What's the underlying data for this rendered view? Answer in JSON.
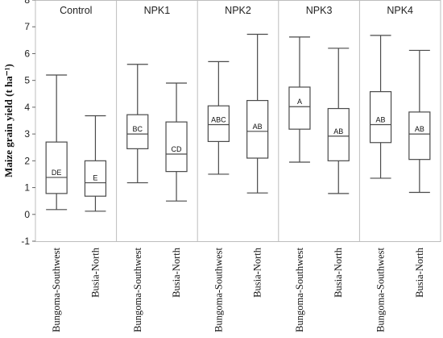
{
  "chart_data": {
    "type": "boxplot",
    "ylabel": "Maize grain yield (t ha⁻¹)",
    "ylim": [
      -1,
      8
    ],
    "yticks": [
      -1,
      0,
      1,
      2,
      3,
      4,
      5,
      6,
      7,
      8
    ],
    "panels": [
      {
        "title": "Control",
        "boxes": [
          {
            "category": "Bungoma-Southwest",
            "min": 0.18,
            "q1": 0.78,
            "median": 1.38,
            "q3": 2.7,
            "max": 5.2,
            "label": "DE"
          },
          {
            "category": "Busia-North",
            "min": 0.12,
            "q1": 0.68,
            "median": 1.18,
            "q3": 2.0,
            "max": 3.68,
            "label": "E"
          }
        ]
      },
      {
        "title": "NPK1",
        "boxes": [
          {
            "category": "Bungoma-Southwest",
            "min": 1.18,
            "q1": 2.45,
            "median": 3.0,
            "q3": 3.72,
            "max": 5.6,
            "label": "BC"
          },
          {
            "category": "Busia-North",
            "min": 0.5,
            "q1": 1.6,
            "median": 2.25,
            "q3": 3.45,
            "max": 4.9,
            "label": "CD"
          }
        ]
      },
      {
        "title": "NPK2",
        "boxes": [
          {
            "category": "Bungoma-Southwest",
            "min": 1.5,
            "q1": 2.72,
            "median": 3.35,
            "q3": 4.05,
            "max": 5.7,
            "label": "ABC"
          },
          {
            "category": "Busia-North",
            "min": 0.8,
            "q1": 2.1,
            "median": 3.1,
            "q3": 4.25,
            "max": 6.72,
            "label": "AB"
          }
        ]
      },
      {
        "title": "NPK3",
        "boxes": [
          {
            "category": "Bungoma-Southwest",
            "min": 1.95,
            "q1": 3.18,
            "median": 4.02,
            "q3": 4.75,
            "max": 6.62,
            "label": "A"
          },
          {
            "category": "Busia-North",
            "min": 0.78,
            "q1": 2.0,
            "median": 2.92,
            "q3": 3.95,
            "max": 6.2,
            "label": "AB"
          }
        ]
      },
      {
        "title": "NPK4",
        "boxes": [
          {
            "category": "Bungoma-Southwest",
            "min": 1.35,
            "q1": 2.68,
            "median": 3.35,
            "q3": 4.58,
            "max": 6.68,
            "label": "AB"
          },
          {
            "category": "Busia-North",
            "min": 0.82,
            "q1": 2.05,
            "median": 3.0,
            "q3": 3.82,
            "max": 6.12,
            "label": "AB"
          }
        ]
      }
    ],
    "grid": false
  }
}
